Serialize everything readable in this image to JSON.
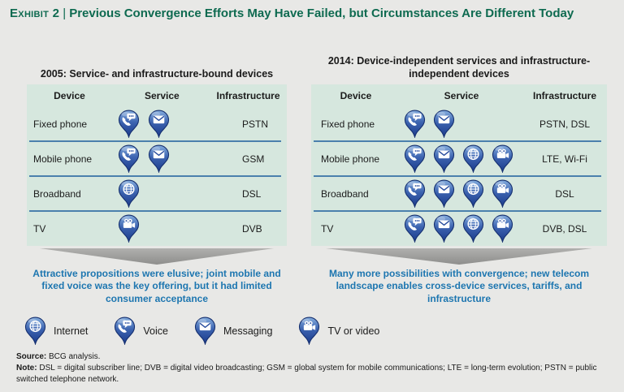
{
  "header": {
    "exhibit_label": "Exhibit 2",
    "separator": "|",
    "title": "Previous Convergence Efforts May Have Failed, but Circumstances Are Different Today"
  },
  "colors": {
    "title_green": "#0e6a50",
    "panel_bg": "#d6e7de",
    "page_bg": "#e8e8e6",
    "caption_blue": "#1d76b0",
    "row_divider_blue": "#4b80ad",
    "arrow_gray": "#9a9a98",
    "pin_blue_dark": "#1b3a8a",
    "pin_blue_light": "#85aede"
  },
  "panels": [
    {
      "heading": "2005: Service- and infrastructure-bound devices",
      "columns": [
        "Device",
        "Service",
        "Infrastructure"
      ],
      "rows": [
        {
          "device": "Fixed phone",
          "services": [
            "voice",
            "messaging"
          ],
          "infrastructure": "PSTN"
        },
        {
          "device": "Mobile phone",
          "services": [
            "voice",
            "messaging"
          ],
          "infrastructure": "GSM"
        },
        {
          "device": "Broadband",
          "services": [
            "internet"
          ],
          "infrastructure": "DSL"
        },
        {
          "device": "TV",
          "services": [
            "tv"
          ],
          "infrastructure": "DVB"
        }
      ],
      "caption": "Attractive propositions were elusive; joint mobile and fixed voice was the key offering, but it had limited consumer acceptance"
    },
    {
      "heading": "2014: Device-independent services and infrastructure-independent devices",
      "columns": [
        "Device",
        "Service",
        "Infrastructure"
      ],
      "rows": [
        {
          "device": "Fixed phone",
          "services": [
            "voice",
            "messaging"
          ],
          "infrastructure": "PSTN, DSL"
        },
        {
          "device": "Mobile phone",
          "services": [
            "voice",
            "messaging",
            "internet",
            "tv"
          ],
          "infrastructure": "LTE, Wi-Fi"
        },
        {
          "device": "Broadband",
          "services": [
            "voice",
            "messaging",
            "internet",
            "tv"
          ],
          "infrastructure": "DSL"
        },
        {
          "device": "TV",
          "services": [
            "voice",
            "messaging",
            "internet",
            "tv"
          ],
          "infrastructure": "DVB, DSL"
        }
      ],
      "caption": "Many more possibilities with convergence; new telecom landscape enables cross-device services, tariffs, and infrastructure"
    }
  ],
  "legend": [
    {
      "icon": "internet",
      "label": "Internet"
    },
    {
      "icon": "voice",
      "label": "Voice"
    },
    {
      "icon": "messaging",
      "label": "Messaging"
    },
    {
      "icon": "tv",
      "label": "TV or video"
    }
  ],
  "footer": {
    "source_label": "Source:",
    "source_text": "BCG analysis.",
    "note_label": "Note:",
    "note_text": "DSL = digital subscriber line; DVB = digital video broadcasting; GSM = global system for mobile communications; LTE = long-term evolution; PSTN = public switched telephone network."
  }
}
